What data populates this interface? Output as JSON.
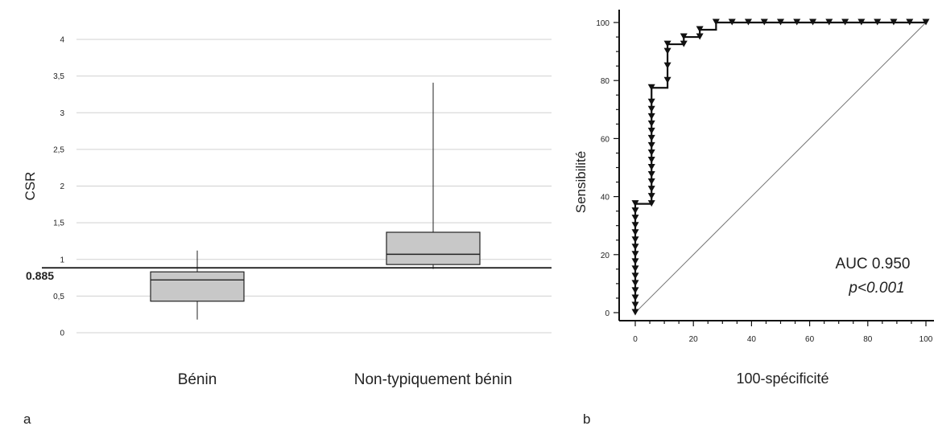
{
  "chart_data": [
    {
      "type": "box",
      "panel_label": "a",
      "ylabel": "CSR",
      "ytick_labels": [
        "0",
        "0,5",
        "1",
        "1,5",
        "2",
        "2,5",
        "3",
        "3,5",
        "4"
      ],
      "ylim": [
        0,
        4
      ],
      "grid": true,
      "threshold": {
        "value": 0.885,
        "label": "0.885"
      },
      "categories": [
        "Bénin",
        "Non-typiquement bénin"
      ],
      "boxes": [
        {
          "name": "Bénin",
          "min": 0.18,
          "q1": 0.43,
          "median": 0.72,
          "q3": 0.83,
          "max": 1.12
        },
        {
          "name": "Non-typiquement bénin",
          "min": 0.87,
          "q1": 0.93,
          "median": 1.07,
          "q3": 1.37,
          "max": 3.41
        }
      ]
    },
    {
      "type": "line",
      "panel_label": "b",
      "xlabel": "100-spécificité",
      "ylabel": "Sensibilité",
      "xlim": [
        0,
        100
      ],
      "ylim": [
        0,
        100
      ],
      "xticks": [
        0,
        20,
        40,
        60,
        80,
        100
      ],
      "yticks": [
        0,
        20,
        40,
        60,
        80,
        100
      ],
      "series": [
        {
          "x": [
            0,
            0,
            0,
            0,
            0,
            0,
            0,
            0,
            0,
            0,
            0,
            0,
            0,
            0,
            0,
            0,
            5.6,
            5.6,
            5.6,
            5.6,
            5.6,
            5.6,
            5.6,
            5.6,
            5.6,
            5.6,
            5.6,
            5.6,
            5.6,
            5.6,
            5.6,
            5.6,
            11.1,
            11.1,
            11.1,
            11.1,
            16.7,
            16.7,
            22.2,
            22.2,
            27.8,
            33.3,
            38.9,
            44.4,
            50,
            55.6,
            61.1,
            66.7,
            72.2,
            77.8,
            83.3,
            88.9,
            94.4,
            100
          ],
          "y": [
            0,
            2.5,
            5,
            7.5,
            10,
            12.5,
            15,
            17.5,
            20,
            22.5,
            25,
            27.5,
            30,
            32.5,
            35,
            37.5,
            37.5,
            40,
            42.5,
            45,
            47.5,
            50,
            52.5,
            55,
            57.5,
            60,
            62.5,
            65,
            67.5,
            70,
            72.5,
            77.5,
            80,
            85,
            90,
            92.5,
            92.5,
            95,
            95,
            97.5,
            100,
            100,
            100,
            100,
            100,
            100,
            100,
            100,
            100,
            100,
            100,
            100,
            100,
            100
          ]
        },
        {
          "x": [
            0,
            100
          ],
          "y": [
            0,
            100
          ]
        }
      ],
      "annotations": {
        "auc": "AUC 0.950",
        "p": "p<0.001"
      }
    }
  ]
}
